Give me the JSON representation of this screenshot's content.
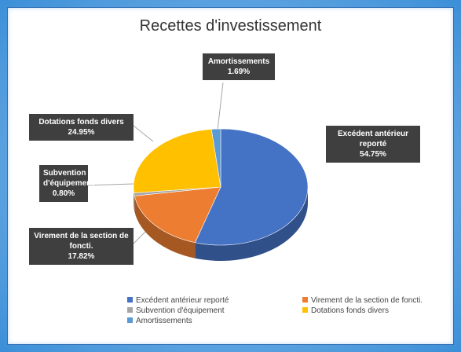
{
  "chart_data": {
    "type": "pie",
    "title": "Recettes d'investissement",
    "categories": [
      "Excédent antérieur reporté",
      "Virement de la section de foncti.",
      "Subvention d'équipement",
      "Dotations fonds divers",
      "Amortissements"
    ],
    "values": [
      54.75,
      17.82,
      0.8,
      24.95,
      1.69
    ],
    "value_labels": [
      "54.75%",
      "17.82%",
      "0.80%",
      "24.95%",
      "1.69%"
    ],
    "colors": [
      "#4472c4",
      "#ed7d31",
      "#a5a5a5",
      "#ffc000",
      "#5b9bd5"
    ],
    "legend": "bottom"
  }
}
